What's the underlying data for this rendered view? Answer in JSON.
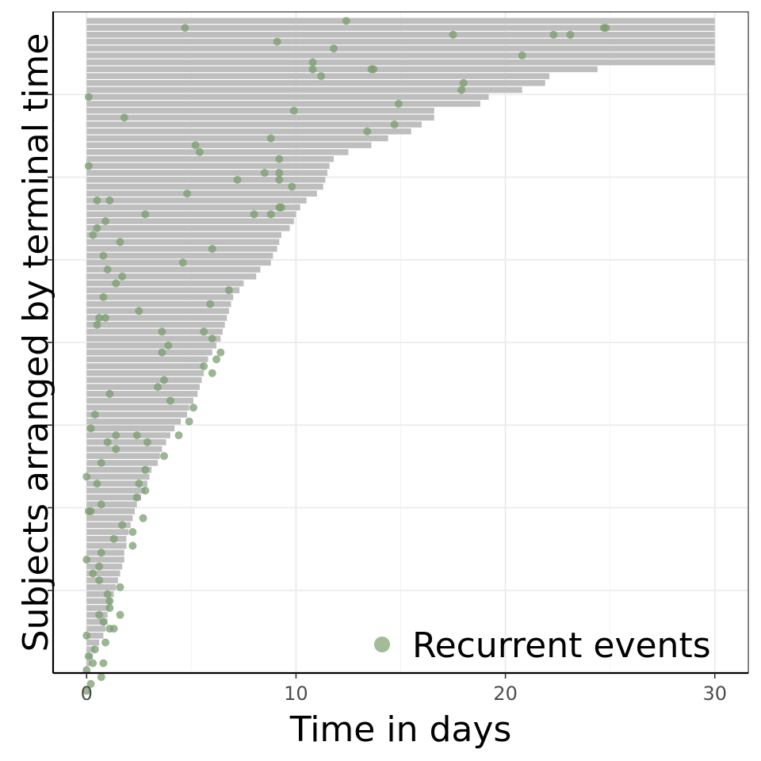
{
  "chart_data": {
    "type": "bar",
    "orientation": "horizontal",
    "title": "",
    "xlabel": "Time in days",
    "ylabel": "Subjects arranged by terminal time",
    "xlim": [
      -1.6,
      31.6
    ],
    "xticks": [
      0,
      10,
      20,
      30
    ],
    "x_tick_labels": [
      "0",
      "10",
      "20",
      "30"
    ],
    "grid": true,
    "legend_position": "bottom-right",
    "bar_color": "#bebebe",
    "point_color": "#7a9e6e",
    "series": [
      {
        "name": "",
        "type": "bar",
        "values": [
          30,
          30,
          30,
          30,
          30,
          30,
          30,
          24.4,
          22.1,
          21.9,
          20.8,
          19.2,
          18.8,
          16.6,
          16.6,
          16.0,
          15.5,
          14.4,
          13.6,
          12.5,
          11.8,
          11.6,
          11.5,
          11.4,
          11.3,
          11.0,
          10.5,
          10.2,
          10.0,
          9.9,
          9.7,
          9.3,
          9.2,
          9.1,
          8.9,
          8.8,
          8.3,
          8.1,
          7.5,
          7.3,
          7.0,
          6.9,
          6.8,
          6.7,
          6.6,
          6.5,
          6.4,
          6.2,
          6.0,
          5.8,
          5.6,
          5.6,
          5.5,
          5.4,
          5.3,
          5.1,
          4.9,
          4.8,
          4.5,
          4.2,
          4.0,
          3.8,
          3.6,
          3.5,
          3.4,
          3.1,
          3.0,
          2.9,
          2.8,
          2.6,
          2.4,
          2.3,
          2.2,
          2.1,
          2.0,
          1.9,
          1.9,
          1.8,
          1.8,
          1.7,
          1.6,
          1.5,
          1.4,
          1.3,
          1.2,
          1.1,
          1.0,
          1.0,
          0.9,
          0.8,
          0.6,
          0.4,
          0.3,
          0.2
        ]
      },
      {
        "name": "Recurrent events",
        "type": "scatter",
        "points": [
          [
            12.4,
            0
          ],
          [
            4.7,
            1
          ],
          [
            24.8,
            1
          ],
          [
            24.7,
            1
          ],
          [
            17.5,
            2
          ],
          [
            22.3,
            2
          ],
          [
            23.1,
            2
          ],
          [
            9.1,
            3
          ],
          [
            11.8,
            4
          ],
          [
            20.8,
            5
          ],
          [
            10.8,
            6
          ],
          [
            10.8,
            7
          ],
          [
            13.6,
            7
          ],
          [
            13.7,
            7
          ],
          [
            11.2,
            8
          ],
          [
            18.0,
            9
          ],
          [
            17.9,
            10
          ],
          [
            0.1,
            11
          ],
          [
            14.9,
            12
          ],
          [
            9.9,
            13
          ],
          [
            1.8,
            14
          ],
          [
            14.7,
            15
          ],
          [
            13.4,
            16
          ],
          [
            8.8,
            17
          ],
          [
            5.2,
            18
          ],
          [
            5.4,
            19
          ],
          [
            9.2,
            20
          ],
          [
            0.1,
            21
          ],
          [
            8.5,
            22
          ],
          [
            9.2,
            22
          ],
          [
            7.2,
            23
          ],
          [
            9.2,
            23
          ],
          [
            9.8,
            24
          ],
          [
            4.8,
            25
          ],
          [
            0.5,
            26
          ],
          [
            1.1,
            26
          ],
          [
            9.2,
            27
          ],
          [
            9.3,
            27
          ],
          [
            2.8,
            28
          ],
          [
            8.0,
            28
          ],
          [
            8.8,
            28
          ],
          [
            0.9,
            29
          ],
          [
            0.5,
            30
          ],
          [
            0.3,
            31
          ],
          [
            1.6,
            32
          ],
          [
            6.0,
            33
          ],
          [
            0.8,
            34
          ],
          [
            4.6,
            35
          ],
          [
            1.0,
            36
          ],
          [
            1.7,
            37
          ],
          [
            1.4,
            38
          ],
          [
            6.8,
            39
          ],
          [
            0.8,
            40
          ],
          [
            5.9,
            41
          ],
          [
            2.5,
            42
          ],
          [
            0.6,
            43
          ],
          [
            0.9,
            43
          ],
          [
            0.5,
            44
          ],
          [
            3.6,
            45
          ],
          [
            5.6,
            45
          ],
          [
            6.0,
            46
          ],
          [
            3.9,
            47
          ],
          [
            6.4,
            48
          ],
          [
            3.6,
            48
          ],
          [
            6.2,
            49
          ],
          [
            5.6,
            50
          ],
          [
            6.0,
            51
          ],
          [
            3.7,
            52
          ],
          [
            3.4,
            53
          ],
          [
            1.1,
            54
          ],
          [
            4.0,
            55
          ],
          [
            5.1,
            56
          ],
          [
            0.4,
            57
          ],
          [
            4.9,
            58
          ],
          [
            0.2,
            59
          ],
          [
            1.4,
            60
          ],
          [
            2.4,
            60
          ],
          [
            4.4,
            60
          ],
          [
            1.0,
            61
          ],
          [
            2.9,
            61
          ],
          [
            1.4,
            62
          ],
          [
            3.7,
            63
          ],
          [
            0.7,
            64
          ],
          [
            2.8,
            65
          ],
          [
            0.0,
            66
          ],
          [
            2.5,
            67
          ],
          [
            0.5,
            67
          ],
          [
            2.8,
            68
          ],
          [
            2.4,
            69
          ],
          [
            0.7,
            70
          ],
          [
            0.1,
            71
          ],
          [
            0.2,
            71
          ],
          [
            2.7,
            72
          ],
          [
            1.7,
            73
          ],
          [
            2.2,
            74
          ],
          [
            1.3,
            75
          ],
          [
            2.2,
            76
          ],
          [
            0.7,
            77
          ],
          [
            0.0,
            78
          ],
          [
            0.6,
            79
          ],
          [
            0.3,
            80
          ],
          [
            0.6,
            81
          ],
          [
            1.6,
            82
          ],
          [
            1.0,
            83
          ],
          [
            1.1,
            84
          ],
          [
            1.1,
            85
          ],
          [
            0.6,
            86
          ],
          [
            1.6,
            86
          ],
          [
            0.8,
            87
          ],
          [
            1.1,
            88
          ],
          [
            1.3,
            88
          ],
          [
            0.0,
            89
          ],
          [
            0.9,
            90
          ],
          [
            0.4,
            91
          ],
          [
            0.1,
            92
          ],
          [
            0.8,
            93
          ],
          [
            0.3,
            93
          ],
          [
            0.0,
            94
          ],
          [
            0.7,
            95
          ],
          [
            0.2,
            96
          ],
          [
            0.0,
            97
          ]
        ]
      }
    ]
  }
}
